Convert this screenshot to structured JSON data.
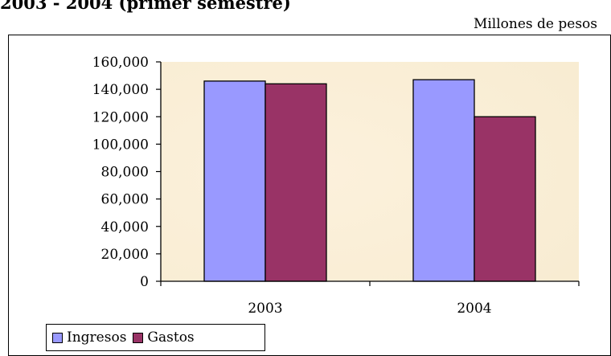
{
  "title": "2003 - 2004 (primer semestre)",
  "units_note": "Millones de pesos",
  "chart_data": {
    "type": "bar",
    "categories": [
      "2003",
      "2004"
    ],
    "series": [
      {
        "name": "Ingresos",
        "values": [
          146000,
          147000
        ],
        "color": "#9999ff"
      },
      {
        "name": "Gastos",
        "values": [
          144000,
          120000
        ],
        "color": "#993366"
      }
    ],
    "ylim": [
      0,
      160000
    ],
    "yticks": [
      "0",
      "20,000",
      "40,000",
      "60,000",
      "80,000",
      "100,000",
      "120,000",
      "140,000",
      "160,000"
    ],
    "ytick_values": [
      0,
      20000,
      40000,
      60000,
      80000,
      100000,
      120000,
      140000,
      160000
    ],
    "legend": "bottom-left",
    "grid": false,
    "plot_background": "#fbf0d8"
  }
}
